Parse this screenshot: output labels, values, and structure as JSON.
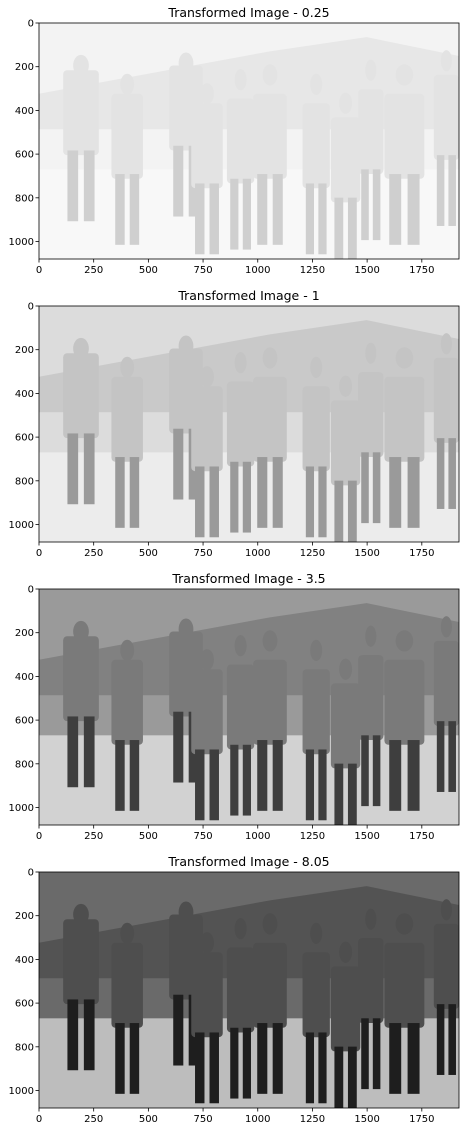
{
  "chart_data": [
    {
      "type": "image",
      "title": "Transformed Image - 0.25",
      "gamma": 0.25,
      "xlim": [
        0,
        1920
      ],
      "ylim": [
        1080,
        0
      ],
      "xticks": [
        0,
        250,
        500,
        750,
        1000,
        1250,
        1500,
        1750
      ],
      "yticks": [
        0,
        200,
        400,
        600,
        800,
        1000
      ],
      "tone": "very light, washed-out grayscale photo",
      "bg_color": "#f3f3f3",
      "mid_color": "#e3e3e3",
      "dark_color": "#cfcfcf",
      "ground_color": "#f8f8f8"
    },
    {
      "type": "image",
      "title": "Transformed Image - 1",
      "gamma": 1,
      "xlim": [
        0,
        1920
      ],
      "ylim": [
        1080,
        0
      ],
      "xticks": [
        0,
        250,
        500,
        750,
        1000,
        1250,
        1500,
        1750
      ],
      "yticks": [
        0,
        200,
        400,
        600,
        800,
        1000
      ],
      "tone": "light grayscale photo",
      "bg_color": "#dcdcdc",
      "mid_color": "#c4c4c4",
      "dark_color": "#9a9a9a",
      "ground_color": "#ececec"
    },
    {
      "type": "image",
      "title": "Transformed Image - 3.5",
      "gamma": 3.5,
      "xlim": [
        0,
        1920
      ],
      "ylim": [
        1080,
        0
      ],
      "xticks": [
        0,
        250,
        500,
        750,
        1000,
        1250,
        1500,
        1750
      ],
      "yticks": [
        0,
        200,
        400,
        600,
        800,
        1000
      ],
      "tone": "medium-contrast grayscale photo",
      "bg_color": "#9a9a9a",
      "mid_color": "#7a7a7a",
      "dark_color": "#3e3e3e",
      "ground_color": "#d2d2d2"
    },
    {
      "type": "image",
      "title": "Transformed Image - 8.05",
      "gamma": 8.05,
      "xlim": [
        0,
        1920
      ],
      "ylim": [
        1080,
        0
      ],
      "xticks": [
        0,
        250,
        500,
        750,
        1000,
        1250,
        1500,
        1750
      ],
      "yticks": [
        0,
        200,
        400,
        600,
        800,
        1000
      ],
      "tone": "high-contrast, dark grayscale photo",
      "bg_color": "#6a6a6a",
      "mid_color": "#4e4e4e",
      "dark_color": "#1e1e1e",
      "ground_color": "#bdbdbd"
    }
  ]
}
